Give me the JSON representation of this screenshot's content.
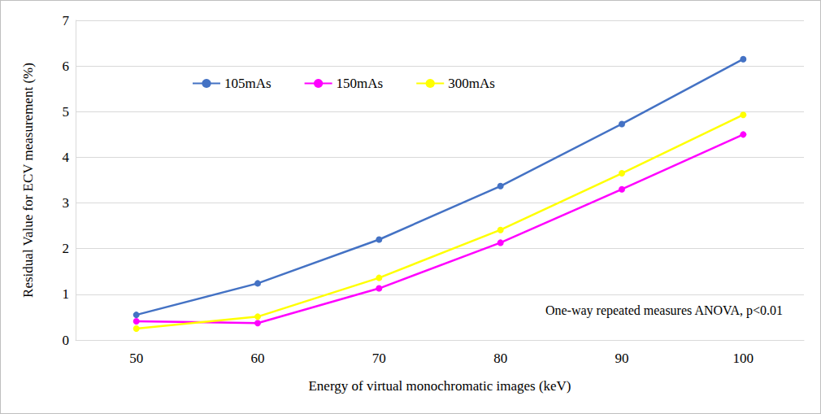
{
  "chart_data": {
    "type": "line",
    "xlabel": "Energy of virtual monochromatic images (keV)",
    "ylabel": "Residual Value for ECV measurement (%)",
    "annotation": "One-way repeated measures ANOVA, p<0.01",
    "categories": [
      50,
      60,
      70,
      80,
      90,
      100
    ],
    "series": [
      {
        "name": "105mAs",
        "color": "#4472c4",
        "marker": "circle",
        "values": [
          0.55,
          1.24,
          2.2,
          3.37,
          4.73,
          6.15
        ]
      },
      {
        "name": "150mAs",
        "color": "#ff00ff",
        "marker": "circle",
        "values": [
          0.41,
          0.37,
          1.13,
          2.13,
          3.3,
          4.5
        ]
      },
      {
        "name": "300mAs",
        "color": "#ffff00",
        "marker": "circle",
        "values": [
          0.25,
          0.51,
          1.36,
          2.41,
          3.65,
          4.93
        ]
      }
    ],
    "ylim": [
      0,
      7
    ],
    "yticks": [
      0,
      1,
      2,
      3,
      4,
      5,
      6,
      7
    ],
    "grid": true,
    "legend": "upper left"
  }
}
